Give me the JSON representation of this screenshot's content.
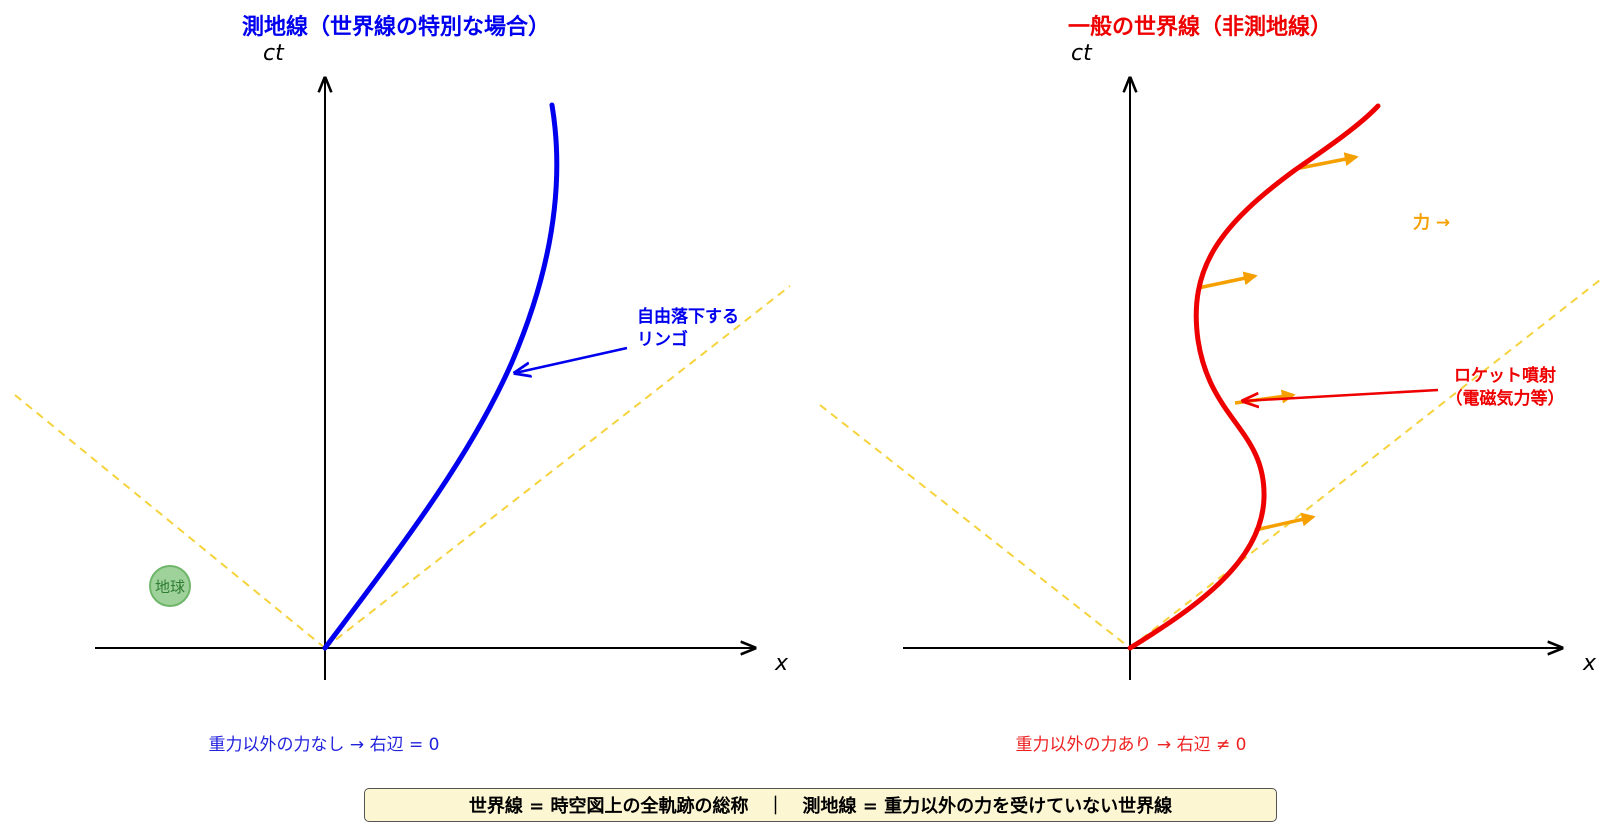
{
  "panels": [
    {
      "title": "測地線（世界線の特別な場合）",
      "title_color": "#0000ee",
      "y_axis_label": "ct",
      "x_axis_label": "x",
      "curve_color": "#0000ee",
      "annotation_line1": "自由落下する",
      "annotation_line2": "リンゴ",
      "earth_label": "地球",
      "note": "重力以外の力なし → 右辺 = 0"
    },
    {
      "title": "一般の世界線（非測地線）",
      "title_color": "#ee0000",
      "y_axis_label": "ct",
      "x_axis_label": "x",
      "curve_color": "#ee0000",
      "force_label": "力 →",
      "force_color": "#f5a000",
      "annotation_line1": "ロケット噴射",
      "annotation_line2": "（電磁気力等）",
      "note": "重力以外の力あり → 右辺 ≠ 0"
    }
  ],
  "light_cone_color": "#f5d33c",
  "footer": "世界線 = 時空図上の全軌跡の総称　｜　測地線 = 重力以外の力を受けていない世界線"
}
